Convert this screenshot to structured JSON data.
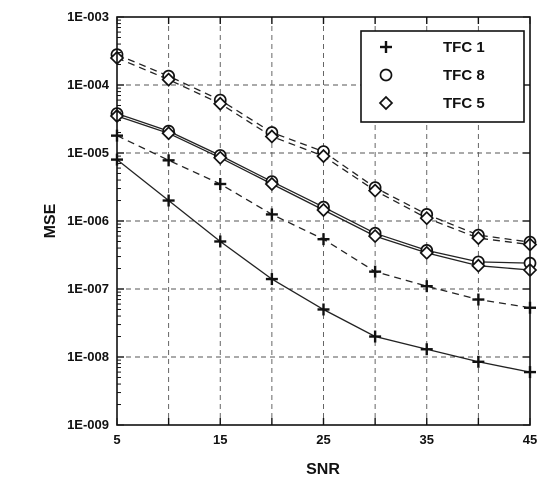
{
  "chart_data": {
    "type": "line",
    "title": "",
    "xlabel": "SNR",
    "ylabel": "MSE",
    "x": [
      5,
      10,
      15,
      20,
      25,
      30,
      35,
      40,
      45
    ],
    "xlim": [
      5,
      45
    ],
    "ylim": [
      1e-09,
      0.001
    ],
    "yscale": "log",
    "grid": true,
    "grid_style": "dashed",
    "legend_position": "top-right",
    "x_ticks": [
      "5",
      "15",
      "25",
      "35",
      "45"
    ],
    "y_ticks": [
      "1E-003",
      "1E-004",
      "1E-005",
      "1E-006",
      "1E-007",
      "1E-008",
      "1E-009"
    ],
    "legend": [
      {
        "label": "TFC 1",
        "marker": "plus"
      },
      {
        "label": "TFC 8",
        "marker": "circle"
      },
      {
        "label": "TFC 5",
        "marker": "diamond"
      }
    ],
    "series": [
      {
        "marker": "plus",
        "line_style": "solid",
        "values": [
          8e-06,
          2e-06,
          5e-07,
          1.4e-07,
          5e-08,
          2e-08,
          1.3e-08,
          8.5e-09,
          6e-09
        ]
      },
      {
        "marker": "plus",
        "line_style": "dashed",
        "values": [
          1.8e-05,
          7.8e-06,
          3.5e-06,
          1.25e-06,
          5.4e-07,
          1.8e-07,
          1.1e-07,
          7e-08,
          5.3e-08
        ]
      },
      {
        "marker": "circle",
        "line_style": "solid",
        "values": [
          3.8e-05,
          2.1e-05,
          9.2e-06,
          3.8e-06,
          1.6e-06,
          6.6e-07,
          3.7e-07,
          2.5e-07,
          2.4e-07
        ]
      },
      {
        "marker": "diamond",
        "line_style": "solid",
        "values": [
          3.5e-05,
          1.95e-05,
          8.5e-06,
          3.5e-06,
          1.45e-06,
          6e-07,
          3.4e-07,
          2.2e-07,
          1.9e-07
        ]
      },
      {
        "marker": "circle",
        "line_style": "dashed",
        "values": [
          0.00028,
          0.000135,
          6e-05,
          2e-05,
          1.05e-05,
          3.1e-06,
          1.25e-06,
          6.2e-07,
          4.9e-07
        ]
      },
      {
        "marker": "diamond",
        "line_style": "dashed",
        "values": [
          0.00025,
          0.00012,
          5.3e-05,
          1.75e-05,
          9e-06,
          2.8e-06,
          1.1e-06,
          5.6e-07,
          4.5e-07
        ]
      }
    ]
  }
}
